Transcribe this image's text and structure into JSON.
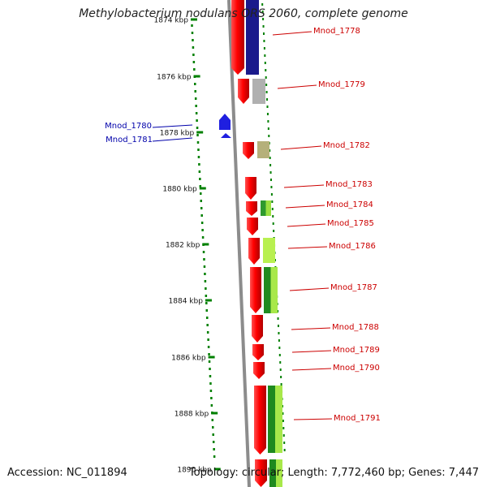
{
  "title": "Methylobacterium nodulans ORS 2060, complete genome",
  "footer": {
    "accession": "Accession: NC_011894",
    "topology": "Topology: circular; Length: 7,772,460 bp; Genes: 7,447"
  },
  "ruler": {
    "ticks": [
      {
        "label": "1874 kbp"
      },
      {
        "label": "1876 kbp"
      },
      {
        "label": "1878 kbp"
      },
      {
        "label": "1880 kbp"
      },
      {
        "label": "1882 kbp"
      },
      {
        "label": "1884 kbp"
      },
      {
        "label": "1886 kbp"
      },
      {
        "label": "1888 kbp"
      },
      {
        "label": "1890 kbp"
      }
    ]
  },
  "genes": [
    {
      "id": "Mnod_1778",
      "strand": "+",
      "colors": [
        "#1a1a8c"
      ]
    },
    {
      "id": "Mnod_1779",
      "strand": "+",
      "colors": [
        "#b0b0b0"
      ]
    },
    {
      "id": "Mnod_1780",
      "strand": "-",
      "colors": [
        "#1f1fe0"
      ]
    },
    {
      "id": "Mnod_1781",
      "strand": "-",
      "colors": [
        "#1f1fe0"
      ]
    },
    {
      "id": "Mnod_1782",
      "strand": "+",
      "colors": [
        "#b5b07a"
      ]
    },
    {
      "id": "Mnod_1783",
      "strand": "+",
      "colors": []
    },
    {
      "id": "Mnod_1784",
      "strand": "+",
      "colors": [
        "#2e9a2e",
        "#9be040"
      ]
    },
    {
      "id": "Mnod_1785",
      "strand": "+",
      "colors": []
    },
    {
      "id": "Mnod_1786",
      "strand": "+",
      "colors": [
        "#b8f050"
      ]
    },
    {
      "id": "Mnod_1787",
      "strand": "+",
      "colors": [
        "#1f8a1f",
        "#a8e84a"
      ]
    },
    {
      "id": "Mnod_1788",
      "strand": "+",
      "colors": []
    },
    {
      "id": "Mnod_1789",
      "strand": "+",
      "colors": []
    },
    {
      "id": "Mnod_1790",
      "strand": "+",
      "colors": []
    },
    {
      "id": "Mnod_1791",
      "strand": "+",
      "colors": [
        "#1f8a1f",
        "#a8e84a"
      ]
    }
  ],
  "colors": {
    "cds": "#e00000",
    "plus_label": "#cc0000",
    "minus_label": "#0000aa",
    "ruler": "#008000",
    "backbone": "#8c8c8c"
  }
}
